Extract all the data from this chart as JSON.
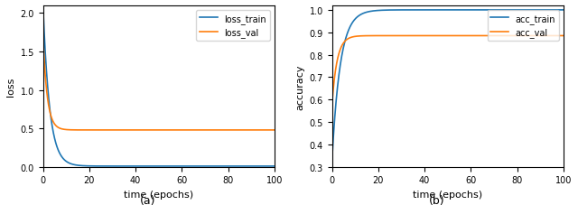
{
  "fig_width": 6.4,
  "fig_height": 2.28,
  "dpi": 100,
  "epochs": 100,
  "loss_train_start": 2.1,
  "loss_train_end": 0.01,
  "loss_train_decay": 0.35,
  "loss_val_start": 1.7,
  "loss_val_plateau": 0.48,
  "loss_val_decay": 0.55,
  "acc_train_start": 0.33,
  "acc_train_plateau": 1.0,
  "acc_train_decay": 0.28,
  "acc_val_start": 0.58,
  "acc_val_plateau": 0.885,
  "acc_val_decay": 0.45,
  "color_train": "#1f77b4",
  "color_val": "#ff7f0e",
  "xlabel": "time (epochs)",
  "ylabel_left": "loss",
  "ylabel_right": "accuracy",
  "label_train_loss": "loss_train",
  "label_val_loss": "loss_val",
  "label_train_acc": "acc_train",
  "label_val_acc": "acc_val",
  "subtitle_a": "(a)",
  "subtitle_b": "(b)",
  "xlim": [
    0,
    100
  ],
  "ylim_loss": [
    0,
    2.1
  ],
  "ylim_acc": [
    0.3,
    1.02
  ],
  "legend_loc": "upper right",
  "yticks_loss": [
    0.0,
    0.5,
    1.0,
    1.5,
    2.0
  ],
  "yticks_acc": [
    0.3,
    0.4,
    0.5,
    0.6,
    0.7,
    0.8,
    0.9,
    1.0
  ]
}
